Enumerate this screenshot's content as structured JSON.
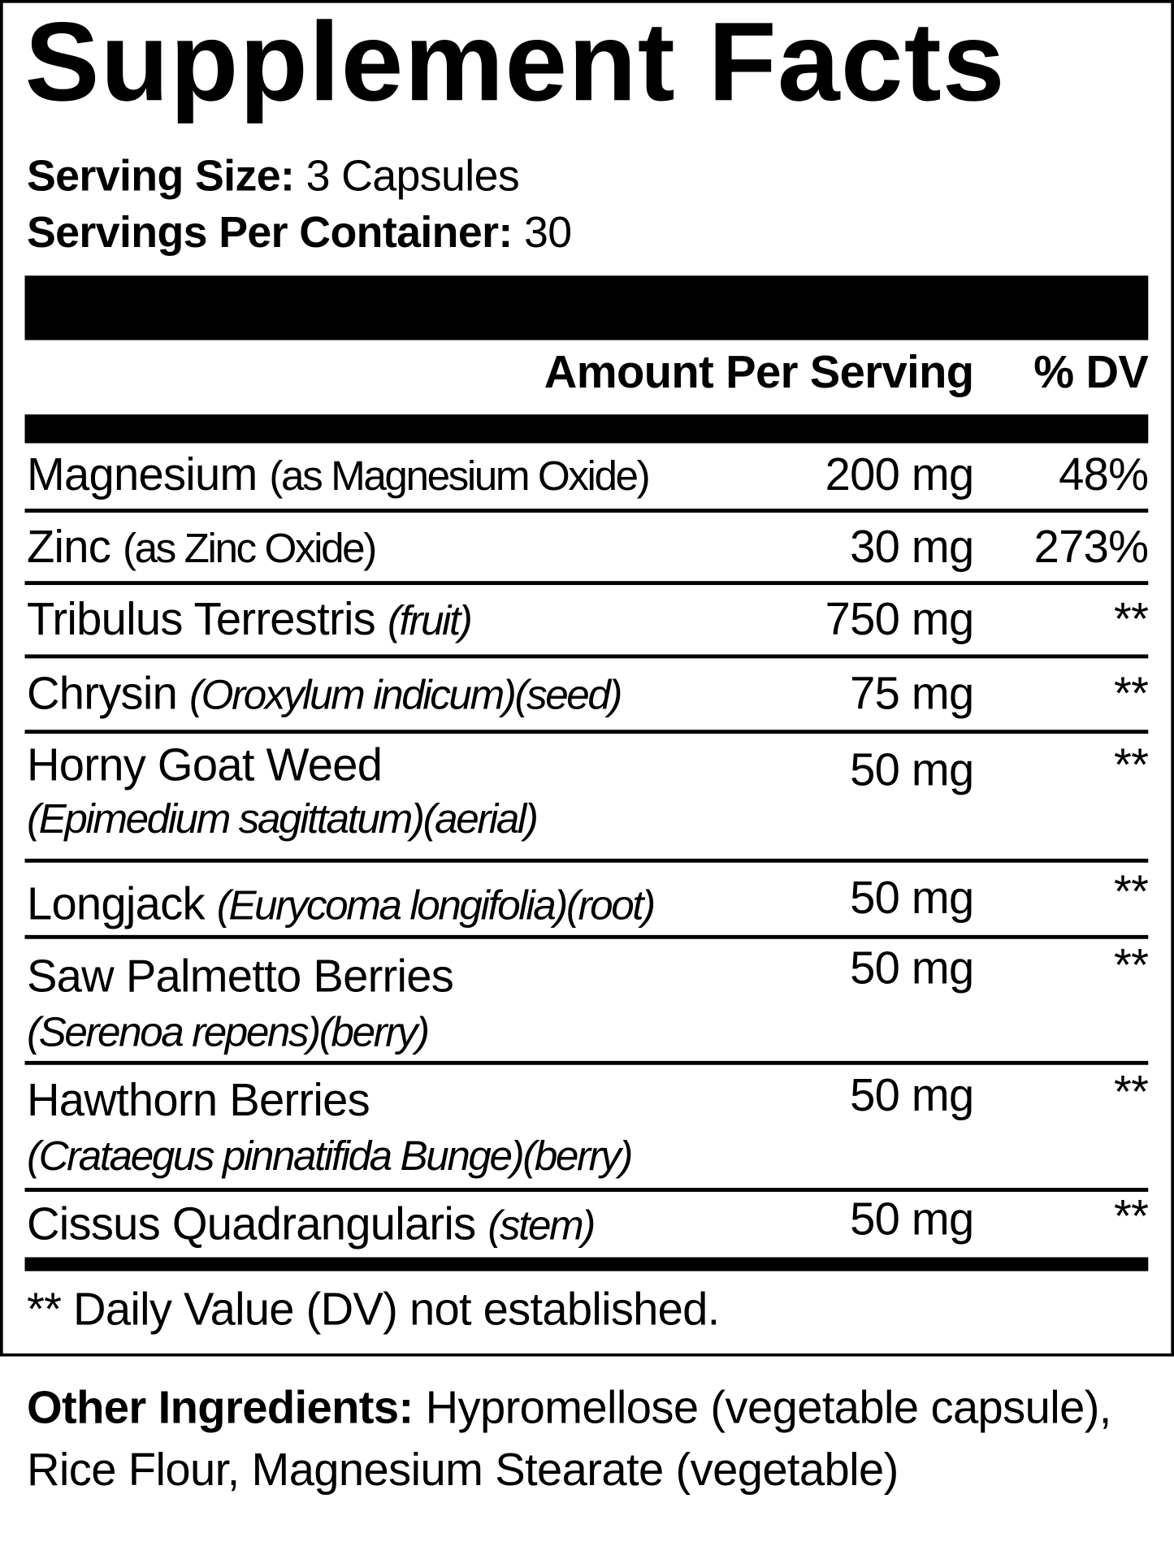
{
  "title": "Supplement Facts",
  "serving": {
    "size_label": "Serving Size:",
    "size_value": "3 Capsules",
    "per_container_label": "Servings Per Container:",
    "per_container_value": "30"
  },
  "header": {
    "amount": "Amount Per Serving",
    "dv": "% DV"
  },
  "rows": [
    {
      "name": "Magnesium",
      "note": "(as Magnesium Oxide)",
      "amount": "200 mg",
      "dv": "48%"
    },
    {
      "name": "Zinc",
      "note": "(as Zinc Oxide)",
      "amount": "30 mg",
      "dv": "273%"
    },
    {
      "name": "Tribulus Terrestris",
      "note": "(fruit)",
      "amount": "750 mg",
      "dv": "**"
    },
    {
      "name": "Chrysin",
      "note": "(Oroxylum indicum)(seed)",
      "amount": "75 mg",
      "dv": "**"
    },
    {
      "name": "Horny Goat Weed",
      "note": "(Epimedium sagittatum)(aerial)",
      "amount": "50 mg",
      "dv": "**"
    },
    {
      "name": "Longjack",
      "note": "(Eurycoma longifolia)(root)",
      "amount": "50 mg",
      "dv": "**"
    },
    {
      "name": "Saw Palmetto Berries",
      "note": "(Serenoa repens)(berry)",
      "amount": "50 mg",
      "dv": "**"
    },
    {
      "name": "Hawthorn Berries",
      "note": "(Crataegus pinnatifida Bunge)(berry)",
      "amount": "50 mg",
      "dv": "**"
    },
    {
      "name": "Cissus Quadrangularis",
      "note": "(stem)",
      "amount": "50 mg",
      "dv": "**"
    }
  ],
  "footnote": "** Daily Value (DV) not established.",
  "other_ingredients": {
    "label": "Other Ingredients:",
    "text": "Hypromellose (vegetable capsule), Rice Flour, Magnesium Stearate (vegetable)"
  }
}
